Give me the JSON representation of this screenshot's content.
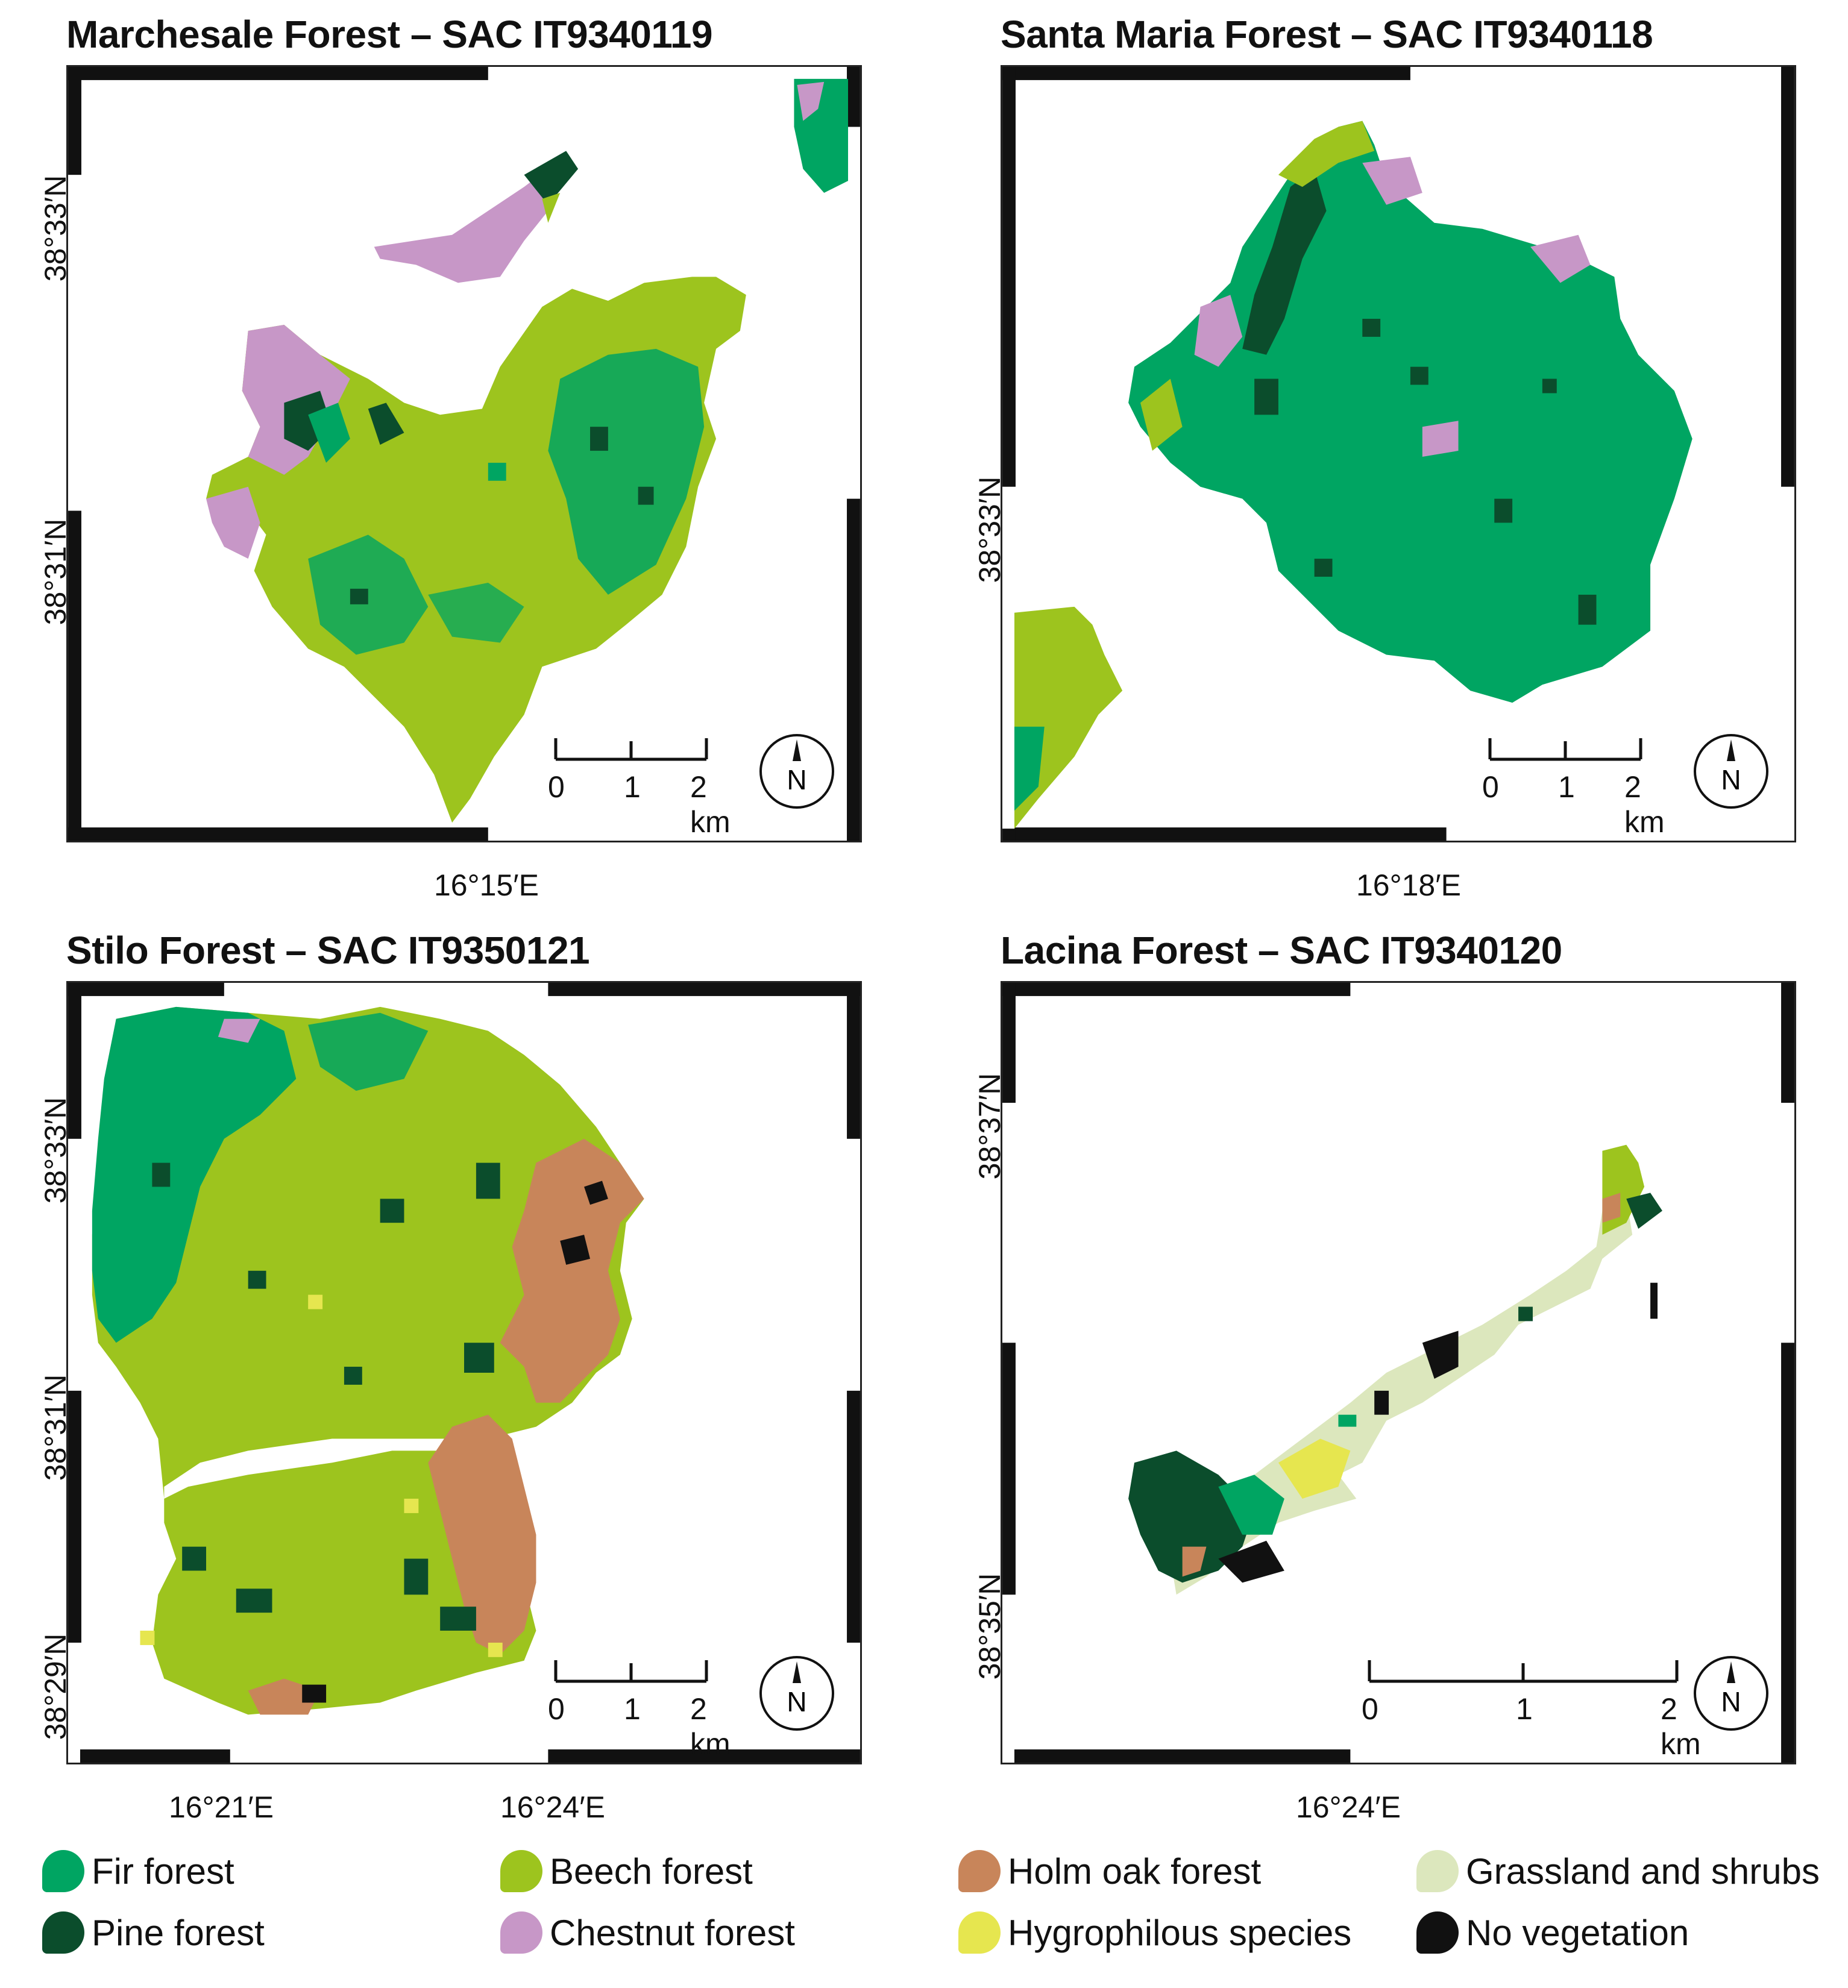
{
  "panels": [
    {
      "title": "Marchesale Forest – SAC IT9340119",
      "lat_labels": [
        "38°33′N",
        "38°31′N"
      ],
      "lon_labels": [
        "16°15′E"
      ],
      "scale": {
        "ticks": [
          "0",
          "1",
          "2 km"
        ]
      },
      "north": "N"
    },
    {
      "title": "Santa Maria Forest – SAC IT9340118",
      "lat_labels": [
        "38°33′N"
      ],
      "lon_labels": [
        "16°18′E"
      ],
      "scale": {
        "ticks": [
          "0",
          "1",
          "2 km"
        ]
      },
      "north": "N"
    },
    {
      "title": "Stilo Forest – SAC IT9350121",
      "lat_labels": [
        "38°33′N",
        "38°31′N",
        "38°29′N"
      ],
      "lon_labels": [
        "16°21′E",
        "16°24′E"
      ],
      "scale": {
        "ticks": [
          "0",
          "1",
          "2 km"
        ]
      },
      "north": "N"
    },
    {
      "title": "Lacina Forest – SAC IT9340120",
      "lat_labels": [
        "38°37′N",
        "38°35′N"
      ],
      "lon_labels": [
        "16°24′E"
      ],
      "scale": {
        "ticks": [
          "0",
          "1",
          "2 km"
        ]
      },
      "north": "N"
    }
  ],
  "legend": [
    {
      "label": "Fir forest",
      "color": "#00a562"
    },
    {
      "label": "Pine forest",
      "color": "#0b4d2c"
    },
    {
      "label": "Beech forest",
      "color": "#9dc41e"
    },
    {
      "label": "Chestnut forest",
      "color": "#c797c7"
    },
    {
      "label": "Holm oak forest",
      "color": "#c8855a"
    },
    {
      "label": "Hygrophilous species",
      "color": "#e6e64f"
    },
    {
      "label": "Grassland and shrubs",
      "color": "#dce7bd"
    },
    {
      "label": "No vegetation",
      "color": "#111111"
    }
  ]
}
